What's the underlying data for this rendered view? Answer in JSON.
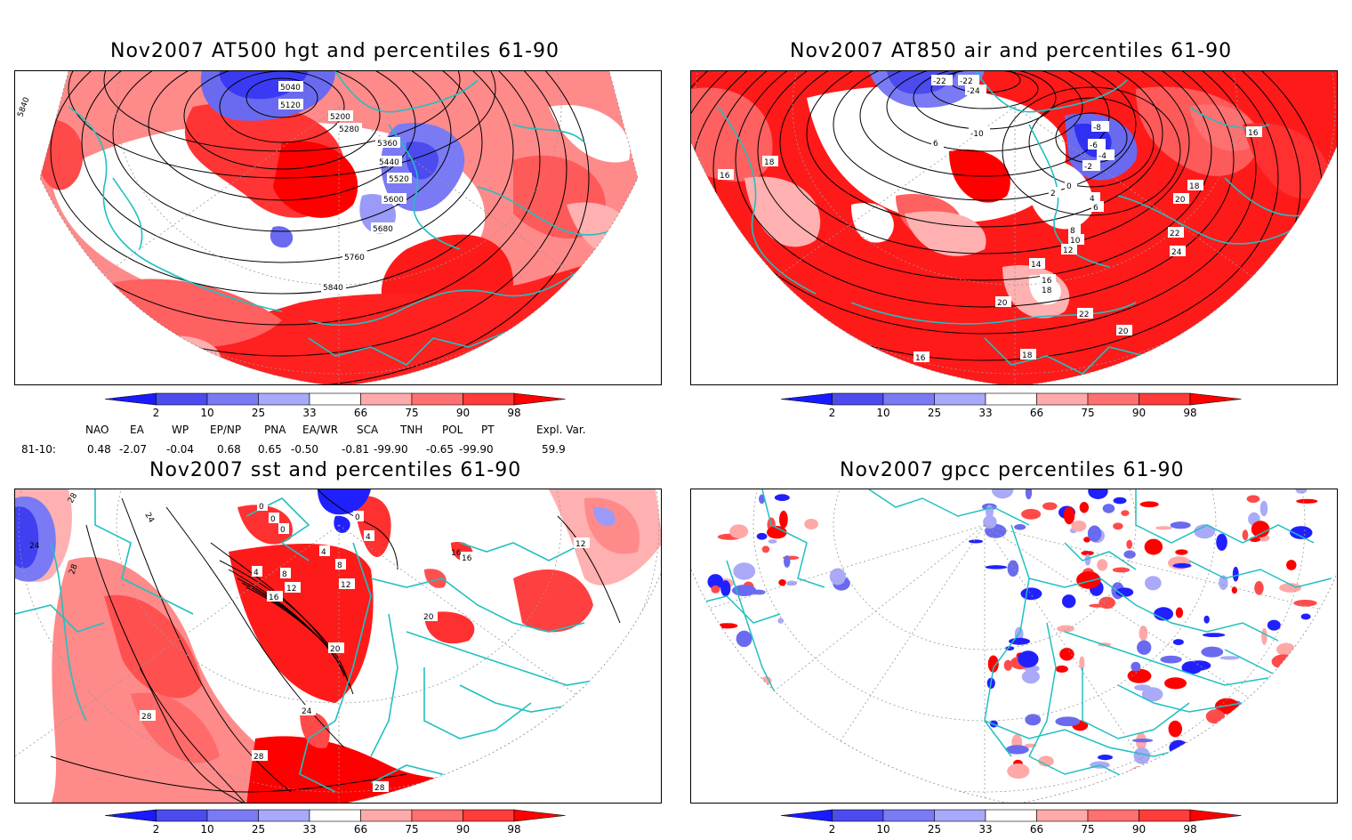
{
  "panels": [
    {
      "title": "Nov2007 AT500 hgt and percentiles 61-90",
      "contour_labels": [
        "5040",
        "5120",
        "5200",
        "5280",
        "5360",
        "5440",
        "5520",
        "5600",
        "5680",
        "5760",
        "5840",
        "5840"
      ]
    },
    {
      "title": "Nov2007 AT850 air and percentiles 61-90",
      "contour_labels": [
        "-22",
        "-24",
        "-22",
        "-10",
        "-8",
        "-6",
        "-4",
        "-2",
        "0",
        "2",
        "4",
        "6",
        "8",
        "10",
        "12",
        "14",
        "16",
        "18",
        "18",
        "18",
        "20",
        "22",
        "24",
        "22",
        "20",
        "20",
        "16",
        "16",
        "18",
        "16",
        "6"
      ]
    },
    {
      "title": "Nov2007 sst and percentiles 61-90",
      "contour_labels": [
        "0",
        "0",
        "0",
        "0",
        "4",
        "4",
        "4",
        "8",
        "8",
        "12",
        "12",
        "16",
        "16",
        "20",
        "20",
        "24",
        "24",
        "24",
        "28",
        "28",
        "28",
        "28",
        "28",
        "12",
        "16"
      ]
    },
    {
      "title": "Nov2007 gpcc percentiles 61-90",
      "contour_labels": []
    }
  ],
  "colorbar": {
    "ticks": [
      "2",
      "10",
      "25",
      "33",
      "66",
      "75",
      "90",
      "98"
    ],
    "colors": [
      "#1a1aff",
      "#4b4bee",
      "#7a7af5",
      "#a9a9fb",
      "#ffffff",
      "#ffaaaa",
      "#ff7070",
      "#ff3c3c",
      "#ff0000"
    ]
  },
  "indices": {
    "headers": [
      "NAO",
      "EA",
      "WP",
      "EP/NP",
      "PNA",
      "EA/WR",
      "SCA",
      "TNH",
      "POL",
      "PT",
      "Expl. Var."
    ],
    "row_label": "81-10:",
    "values": [
      "0.48",
      "-2.07",
      "-0.04",
      "0.68",
      "0.65",
      "-0.50",
      "-0.81",
      "-99.90",
      "-0.65",
      "-99.90",
      "59.9"
    ]
  },
  "colors": {
    "coast": "#20c0c0",
    "red_strong": "#ff0000",
    "red_mid": "#ff4a4a",
    "red_light": "#ffa8a8",
    "blue_strong": "#2020ff",
    "blue_mid": "#6a6af0",
    "blue_light": "#aaaaf8"
  }
}
